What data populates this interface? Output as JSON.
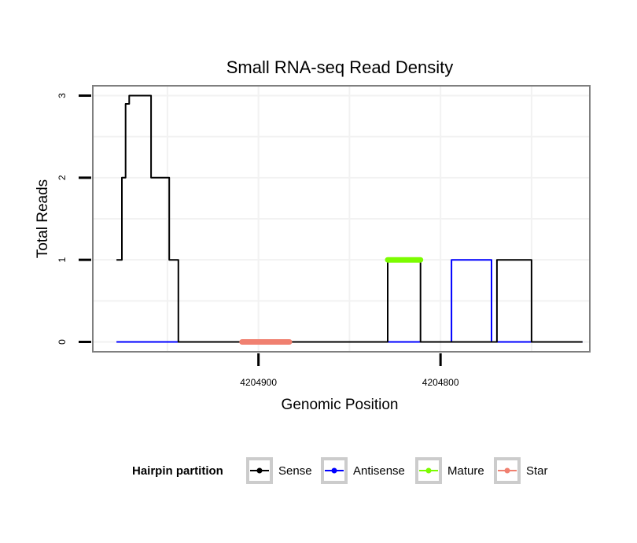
{
  "chart_data": {
    "type": "line",
    "title": "Small RNA-seq Read Density",
    "xlabel": "Genomic Position",
    "ylabel": "Total Reads",
    "x_reversed": true,
    "xlim": [
      4204991,
      4204718
    ],
    "ylim": [
      -0.12,
      3.12
    ],
    "x_ticks": [
      4204900,
      4204800
    ],
    "x_tick_labels": [
      "4204900",
      "4204800"
    ],
    "y_ticks": [
      0,
      1,
      2,
      3
    ],
    "y_tick_labels": [
      "0",
      "1",
      "2",
      "3"
    ],
    "grid": true,
    "legend_position": "bottom",
    "legend_title": "Hairpin partition",
    "series": [
      {
        "name": "Sense",
        "color": "#000000",
        "x": [
          4204978,
          4204975,
          4204975,
          4204973,
          4204973,
          4204971,
          4204971,
          4204959,
          4204959,
          4204951,
          4204951,
          4204949,
          4204949,
          4204944,
          4204944,
          4204829,
          4204829,
          4204811,
          4204811,
          4204790,
          4204790,
          4204769,
          4204769,
          4204750,
          4204750,
          4204729,
          4204729,
          4204722
        ],
        "y": [
          1,
          1,
          2,
          2,
          2.9,
          2.9,
          3,
          3,
          2,
          2,
          2,
          2,
          1,
          1,
          0,
          0,
          1,
          1,
          0,
          0,
          0,
          0,
          1,
          1,
          0,
          0,
          0,
          0
        ]
      },
      {
        "name": "Antisense",
        "color": "#0000ff",
        "x": [
          4204978,
          4204794,
          4204794,
          4204772,
          4204772,
          4204722
        ],
        "y": [
          0,
          0,
          1,
          1,
          0,
          0
        ]
      },
      {
        "name": "Mature",
        "color": "#7cfc00",
        "x": [
          4204829,
          4204811
        ],
        "y": [
          1,
          1
        ]
      },
      {
        "name": "Star",
        "color": "#f08070",
        "x": [
          4204909,
          4204883
        ],
        "y": [
          0,
          0
        ]
      }
    ]
  }
}
